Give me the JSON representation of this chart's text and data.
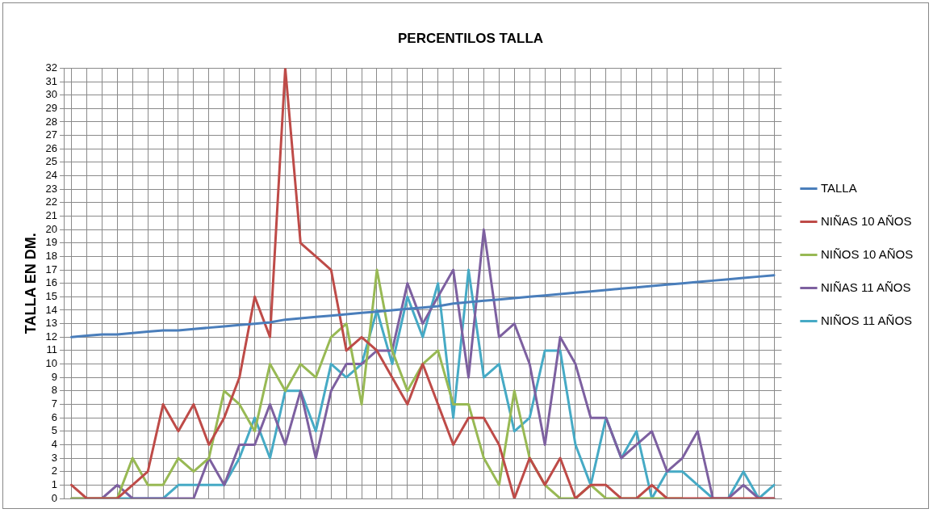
{
  "chart_data": {
    "type": "line",
    "title": "PERCENTILOS TALLA",
    "ylabel": "TALLA EN DM.",
    "categories": [
      null,
      null,
      null,
      null,
      null,
      null,
      null,
      null,
      null,
      null,
      null,
      null,
      null,
      null,
      null,
      null,
      null,
      null,
      null,
      null,
      null,
      null,
      null,
      null,
      null,
      null,
      null,
      null,
      null,
      null,
      null,
      null,
      null,
      null,
      null,
      null,
      null,
      null,
      null,
      null,
      null,
      null,
      null,
      null,
      null,
      null,
      null
    ],
    "series": [
      {
        "name": "TALLA",
        "color": "#4a7ebb",
        "values": [
          12.0,
          12.1,
          12.2,
          12.2,
          12.3,
          12.4,
          12.5,
          12.5,
          12.6,
          12.7,
          12.8,
          12.9,
          13.0,
          13.1,
          13.3,
          13.4,
          13.5,
          13.6,
          13.7,
          13.8,
          13.9,
          14.0,
          14.1,
          14.2,
          14.3,
          14.5,
          14.6,
          14.7,
          14.8,
          14.9,
          15.0,
          15.1,
          15.2,
          15.3,
          15.4,
          15.5,
          15.6,
          15.7,
          15.8,
          15.9,
          16.0,
          16.1,
          16.2,
          16.3,
          16.4,
          16.5,
          16.6
        ]
      },
      {
        "name": "NIÑAS 10 AÑOS",
        "color": "#be4b48",
        "values": [
          1,
          0,
          0,
          0,
          1,
          2,
          7,
          5,
          7,
          4,
          6,
          9,
          15,
          12,
          32,
          19,
          18,
          17,
          11,
          12,
          11,
          9,
          7,
          10,
          7,
          4,
          6,
          6,
          4,
          0,
          3,
          1,
          3,
          0,
          1,
          1,
          0,
          0,
          1,
          0,
          0,
          0,
          0,
          0,
          0,
          0,
          0
        ]
      },
      {
        "name": "NIÑOS 10 AÑOS",
        "color": "#98b954",
        "values": [
          0,
          0,
          0,
          0,
          3,
          1,
          1,
          3,
          2,
          3,
          8,
          7,
          5,
          10,
          8,
          10,
          9,
          12,
          13,
          7,
          17,
          11,
          8,
          10,
          11,
          7,
          7,
          3,
          1,
          8,
          3,
          1,
          0,
          0,
          1,
          0,
          0,
          0,
          0,
          0,
          0,
          null,
          null,
          null,
          null,
          null,
          null
        ]
      },
      {
        "name": "NIÑAS 11 AÑOS",
        "color": "#7d60a0",
        "values": [
          0,
          0,
          0,
          1,
          0,
          0,
          0,
          0,
          0,
          3,
          1,
          4,
          4,
          7,
          4,
          8,
          3,
          8,
          10,
          10,
          11,
          11,
          16,
          13,
          15,
          17,
          9,
          20,
          12,
          13,
          10,
          4,
          12,
          10,
          6,
          6,
          3,
          4,
          5,
          2,
          3,
          5,
          0,
          0,
          1,
          0,
          0
        ]
      },
      {
        "name": "NIÑOS 11 AÑOS",
        "color": "#46aac5",
        "values": [
          null,
          null,
          0,
          0,
          0,
          0,
          0,
          1,
          1,
          1,
          1,
          3,
          6,
          3,
          8,
          8,
          5,
          10,
          9,
          10,
          14,
          10,
          15,
          12,
          16,
          6,
          17,
          9,
          10,
          5,
          6,
          11,
          11,
          4,
          1,
          6,
          3,
          5,
          0,
          2,
          2,
          1,
          0,
          0,
          2,
          0,
          1
        ]
      }
    ],
    "ylim": [
      0,
      32
    ],
    "yticks": [
      0,
      1,
      2,
      3,
      4,
      5,
      6,
      7,
      8,
      9,
      10,
      11,
      12,
      13,
      14,
      15,
      16,
      17,
      18,
      19,
      20,
      21,
      22,
      23,
      24,
      25,
      26,
      27,
      28,
      29,
      30,
      31,
      32
    ],
    "grid": true,
    "legend": "right",
    "marker": "none",
    "line_style": "solid",
    "tick_labels": "y"
  }
}
